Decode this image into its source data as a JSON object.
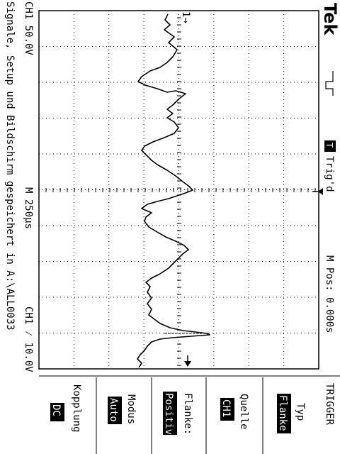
{
  "header": {
    "brand": "Tek",
    "acq_status": "Trig'd",
    "trigger_indicator": "T",
    "horizontal_position": "M Pos: 0.000s"
  },
  "status_bar": {
    "ch1_scale": "CH1  50.0V",
    "timebase": "M 250µs",
    "trigger_readout": "CH1  ⁄  10.0V",
    "save_message": "Signale, Setup und Bildschirm gespeichert in A:\\ALL0033"
  },
  "waveform": {
    "channel": "CH1",
    "marker": "1→"
  },
  "menu": {
    "title": "TRIGGER",
    "items": [
      {
        "label": "Typ",
        "value": "Flanke"
      },
      {
        "label": "Quelle",
        "value": "CH1"
      },
      {
        "label": "Flanke:",
        "value": "Positiv"
      },
      {
        "label": "Modus",
        "value": "Auto"
      },
      {
        "label": "Kopplung",
        "value": "DC"
      }
    ]
  },
  "colors": {
    "foreground": "#000000",
    "background": "#ffffff"
  },
  "icons": {
    "acquisition": "pulse-symbol-icon",
    "trigger_marker": "trigger-arrow-icon"
  }
}
